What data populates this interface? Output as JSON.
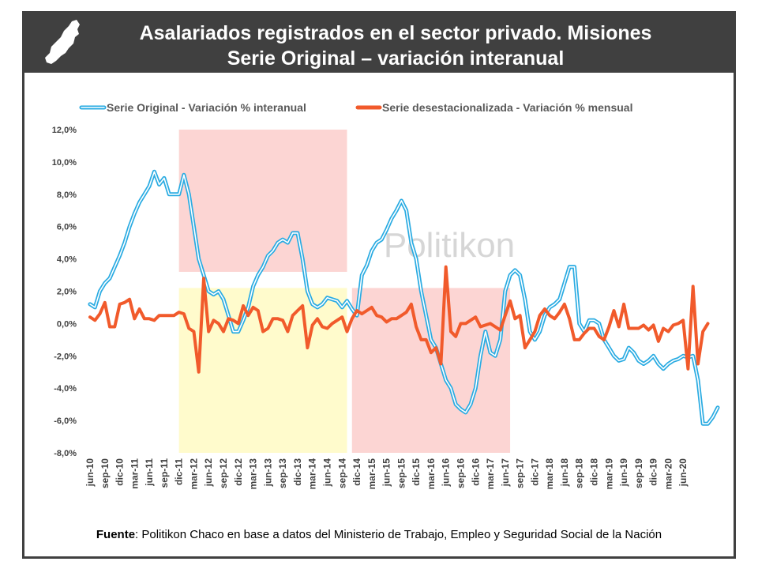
{
  "header": {
    "title_line1": "Asalariados registrados en el sector privado. Misiones",
    "title_line2": "Serie Original – variación interanual"
  },
  "watermark": "Politikon",
  "source": {
    "label": "Fuente",
    "text": ": Politikon Chaco en base a datos del Ministerio de Trabajo, Empleo y Seguridad Social de la Nación"
  },
  "colors": {
    "header_bg": "#404040",
    "series_original": "#29abe2",
    "series_desest": "#f15a2b",
    "band_red": "#fcd5d3",
    "band_yellow": "#fffbcc"
  },
  "chart_data": {
    "type": "line",
    "y_tick_labels": [
      "12,0%",
      "10,0%",
      "8,0%",
      "6,0%",
      "4,0%",
      "2,0%",
      "0,0%",
      "-2,0%",
      "-4,0%",
      "-6,0%",
      "-8,0%"
    ],
    "ylim": [
      -8,
      12
    ],
    "x_tick_labels": [
      "jun-10",
      "sep-10",
      "dic-10",
      "mar-11",
      "jun-11",
      "sep-11",
      "dic-11",
      "mar-12",
      "jun-12",
      "sep-12",
      "dic-12",
      "mar-13",
      "jun-13",
      "sep-13",
      "dic-13",
      "mar-14",
      "jun-14",
      "sep-14",
      "dic-14",
      "mar-15",
      "jun-15",
      "sep-15",
      "dic-15",
      "mar-16",
      "jun-16",
      "sep-16",
      "dic-16",
      "mar-17",
      "jun-17",
      "sep-17",
      "dic-17",
      "mar-18",
      "jun-18",
      "sep-18",
      "dic-18",
      "mar-19",
      "jun-19",
      "sep-19",
      "dic-19",
      "mar-20",
      "jun-20"
    ],
    "legend_position": "top",
    "bands": [
      {
        "from_month": 18,
        "to_month": 52,
        "y_from": 3.2,
        "y_to": 12,
        "color": "band_red"
      },
      {
        "from_month": 18,
        "to_month": 52,
        "y_from": -8,
        "y_to": 2.2,
        "color": "band_yellow"
      },
      {
        "from_month": 53,
        "to_month": 85,
        "y_from": -8,
        "y_to": 2.2,
        "color": "band_red"
      }
    ],
    "series": [
      {
        "name": "Serie Original - Variación % interanual",
        "color": "series_original",
        "values": [
          1.2,
          1,
          2,
          2.5,
          2.8,
          3.5,
          4.2,
          5,
          6,
          6.8,
          7.5,
          8,
          8.5,
          9.4,
          8.6,
          9,
          8,
          8,
          8,
          9.2,
          8,
          6,
          4,
          3,
          2,
          1.8,
          2,
          1.5,
          0.5,
          -0.5,
          -0.5,
          0.2,
          1,
          2.3,
          3,
          3.5,
          4.2,
          4.5,
          5,
          5.2,
          5,
          5.6,
          5.6,
          4,
          2,
          1.2,
          1,
          1.2,
          1.6,
          1.5,
          1.4,
          1,
          1.4,
          0.9,
          0.5,
          3,
          3.6,
          4.5,
          5,
          5.2,
          5.8,
          6.5,
          7,
          7.6,
          7,
          5,
          4,
          2,
          0.5,
          -1,
          -1.5,
          -2.5,
          -3.5,
          -4,
          -5,
          -5.3,
          -5.5,
          -5,
          -4,
          -2,
          -0.5,
          -1.8,
          -2,
          -1,
          2,
          3,
          3.3,
          3,
          1.5,
          -0.5,
          -1,
          -0.5,
          0.5,
          1,
          1.2,
          1.5,
          2.5,
          3.5,
          3.5,
          0,
          -0.5,
          0.2,
          0.2,
          0,
          -1,
          -1.5,
          -2,
          -2.3,
          -2.2,
          -1.5,
          -1.8,
          -2.3,
          -2.5,
          -2.3,
          -2,
          -2.5,
          -2.8,
          -2.5,
          -2.3,
          -2.2,
          -2,
          -2.1,
          -2,
          -3.5,
          -6.2,
          -6.2,
          -5.8,
          -5.2
        ]
      },
      {
        "name": "Serie desestacionalizada - Variación % mensual",
        "color": "series_desest",
        "values": [
          0.4,
          0.2,
          0.6,
          1.3,
          -0.2,
          -0.2,
          1.2,
          1.3,
          1.5,
          0.3,
          0.9,
          0.3,
          0.3,
          0.2,
          0.5,
          0.5,
          0.5,
          0.5,
          0.7,
          0.6,
          -0.3,
          -0.5,
          -3,
          2.8,
          -0.5,
          0.2,
          0,
          -0.5,
          0.3,
          0.2,
          0,
          1.1,
          0.5,
          1,
          0.8,
          -0.5,
          -0.3,
          0.3,
          0.3,
          0.2,
          -0.5,
          0.5,
          0.8,
          1.1,
          -1.5,
          -0.1,
          0.3,
          -0.2,
          -0.3,
          0,
          0.2,
          0.4,
          -0.5,
          0.3,
          0.8,
          0.6,
          0.8,
          1,
          0.5,
          0.4,
          0.1,
          0.3,
          0.3,
          0.5,
          0.7,
          1.2,
          -0.2,
          -1,
          -1,
          -1.8,
          -1.5,
          -2.5,
          3.5,
          -0.5,
          -0.8,
          0,
          0,
          0.2,
          0.4,
          -0.2,
          -0.1,
          0,
          -0.2,
          -0.4,
          0.5,
          1.4,
          0.3,
          0.5,
          -1.5,
          -1,
          -0.5,
          0.5,
          0.9,
          0.5,
          0.3,
          0.7,
          1.2,
          0.3,
          -1,
          -1,
          -0.6,
          -0.3,
          -0.3,
          -0.8,
          -1,
          -0.2,
          0.8,
          -0.2,
          1.2,
          -0.3,
          -0.3,
          -0.3,
          -0.1,
          -0.4,
          -0.1,
          -1.1,
          -0.3,
          -0.5,
          -0.1,
          0,
          0.2,
          -2.8,
          2.3,
          -2.5,
          -0.5,
          0
        ]
      }
    ]
  }
}
